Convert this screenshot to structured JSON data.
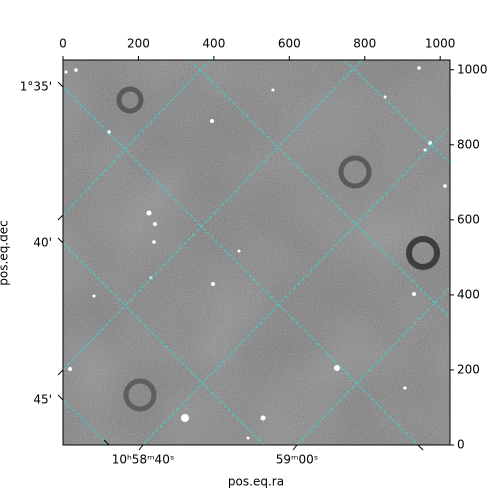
{
  "chart_data": {
    "type": "image",
    "xlabel": "pos.eq.ra",
    "ylabel": "pos.eq.dec",
    "xlim": [
      0,
      1026
    ],
    "ylim": [
      0,
      1026
    ],
    "xticks": [
      0,
      200,
      400,
      600,
      800,
      1000
    ],
    "yticks": [
      0,
      200,
      400,
      600,
      800,
      1000
    ],
    "ra_ticks": [
      "10ʰ58ᵐ40ˢ",
      "59ᵐ00ˢ"
    ],
    "dec_ticks": [
      "1°35'",
      "40'",
      "45'"
    ],
    "grid_color": "#3fd0d0"
  }
}
